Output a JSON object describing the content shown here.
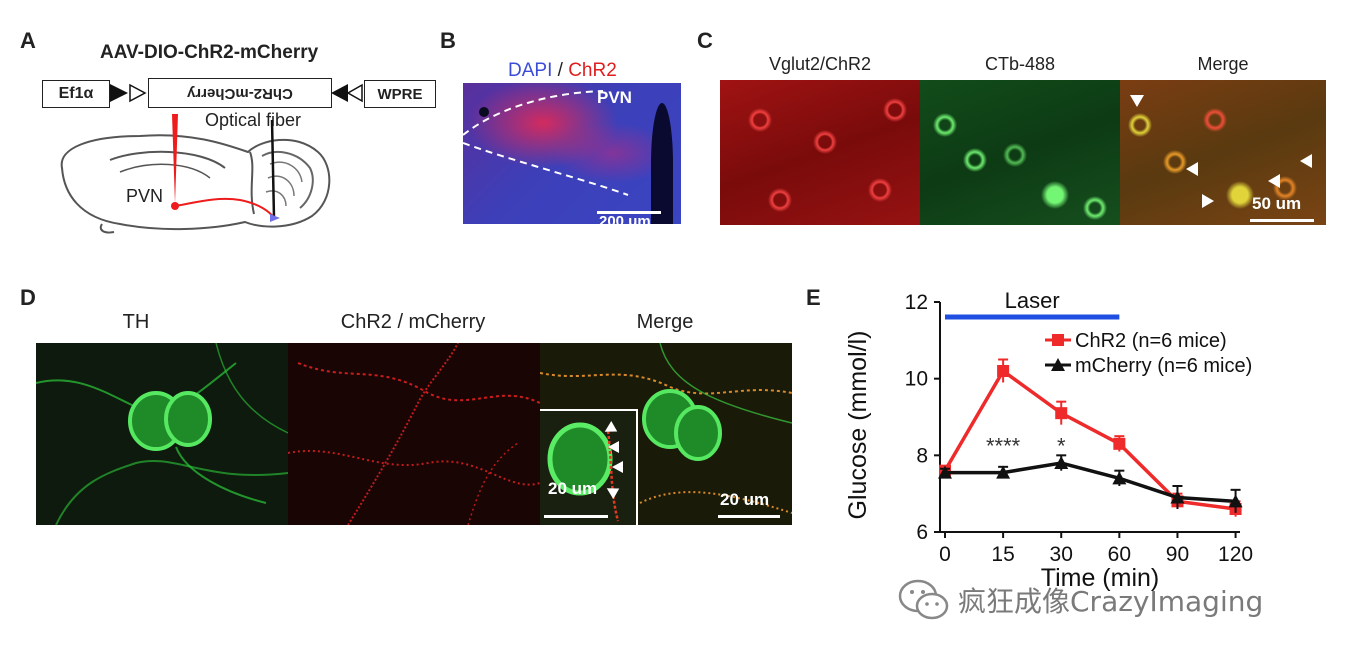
{
  "panels": {
    "a": {
      "label": "A",
      "construct_title": "AAV-DIO-ChR2-mCherry",
      "promoter": "Ef1α",
      "insert": "ChR2-mCherry",
      "wpre": "WPRE",
      "fiber_label": "Optical fiber",
      "region_label": "PVN",
      "colors": {
        "promoter": "#38d6e0",
        "insert": "#ee1c1c",
        "wpre": "#f4a6c8",
        "axon": "#ee1c1c"
      }
    },
    "b": {
      "label": "B",
      "title_dapi": "DAPI",
      "title_sep": " / ",
      "title_chr2": "ChR2",
      "region_label": "PVN",
      "scalebar": "200 um",
      "colors": {
        "dapi": "#3a4cd8",
        "chr2": "#e01e1e"
      }
    },
    "c": {
      "label": "C",
      "captions": [
        "Vglut2/ChR2",
        "CTb-488",
        "Merge"
      ],
      "scalebar": "50 um"
    },
    "d": {
      "label": "D",
      "captions": [
        "TH",
        "ChR2 / mCherry",
        "Merge"
      ],
      "inset_scalebar": "20 um",
      "scalebar": "20 um"
    },
    "e": {
      "label": "E"
    }
  },
  "chart_data": {
    "type": "line",
    "x": [
      "0",
      "15",
      "30",
      "60",
      "90",
      "120"
    ],
    "xlabel": "Time (min)",
    "ylabel": "Glucose (mmol/l)",
    "ylim": [
      6,
      12
    ],
    "yticks": [
      "6",
      "8",
      "10",
      "12"
    ],
    "laser_label": "Laser",
    "laser_span": [
      "0",
      "60"
    ],
    "annotations": [
      {
        "x": "15",
        "text": "****"
      },
      {
        "x": "30",
        "text": "*"
      }
    ],
    "legend_position": "top-right",
    "series": [
      {
        "name": "ChR2 (n=6 mice)",
        "color": "#ee2a2a",
        "marker": "square",
        "values": [
          7.6,
          10.2,
          9.1,
          8.3,
          6.8,
          6.6
        ],
        "errors": [
          0.1,
          0.3,
          0.3,
          0.2,
          0.2,
          0.2
        ]
      },
      {
        "name": "mCherry (n=6 mice)",
        "color": "#111111",
        "marker": "triangle",
        "values": [
          7.55,
          7.55,
          7.8,
          7.4,
          6.9,
          6.8
        ],
        "errors": [
          0.1,
          0.15,
          0.2,
          0.2,
          0.3,
          0.3
        ]
      }
    ],
    "laser_color": "#1f4fe0"
  },
  "watermark": "疯狂成像CrazyImaging"
}
